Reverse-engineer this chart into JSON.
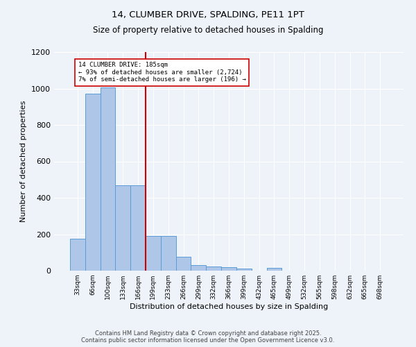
{
  "title": "14, CLUMBER DRIVE, SPALDING, PE11 1PT",
  "subtitle": "Size of property relative to detached houses in Spalding",
  "xlabel": "Distribution of detached houses by size in Spalding",
  "ylabel": "Number of detached properties",
  "footer_line1": "Contains HM Land Registry data © Crown copyright and database right 2025.",
  "footer_line2": "Contains public sector information licensed under the Open Government Licence v3.0.",
  "categories": [
    "33sqm",
    "66sqm",
    "100sqm",
    "133sqm",
    "166sqm",
    "199sqm",
    "233sqm",
    "266sqm",
    "299sqm",
    "332sqm",
    "366sqm",
    "399sqm",
    "432sqm",
    "465sqm",
    "499sqm",
    "532sqm",
    "565sqm",
    "598sqm",
    "632sqm",
    "665sqm",
    "698sqm"
  ],
  "values": [
    175,
    970,
    1005,
    470,
    470,
    190,
    190,
    75,
    30,
    22,
    20,
    12,
    0,
    15,
    0,
    0,
    0,
    0,
    0,
    0,
    0
  ],
  "bar_color": "#aec6e8",
  "bar_edge_color": "#5b9bd5",
  "annotation_text_line1": "14 CLUMBER DRIVE: 185sqm",
  "annotation_text_line2": "← 93% of detached houses are smaller (2,724)",
  "annotation_text_line3": "7% of semi-detached houses are larger (196) →",
  "ylim": [
    0,
    1200
  ],
  "yticks": [
    0,
    200,
    400,
    600,
    800,
    1000,
    1200
  ],
  "bg_color": "#eef3fa",
  "grid_color": "#ffffff",
  "line_color": "#cc0000",
  "annotation_box_color": "#ffffff",
  "annotation_box_edge": "#cc0000"
}
